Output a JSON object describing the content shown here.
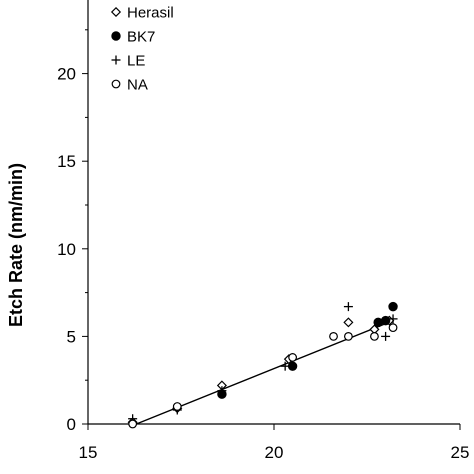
{
  "chart_data": {
    "type": "scatter",
    "title": "",
    "xlabel": "",
    "ylabel": "Etch Rate (nm/min)",
    "xlim": [
      15,
      25
    ],
    "ylim": [
      0,
      25
    ],
    "x_ticks": [
      "15",
      "20",
      "25"
    ],
    "y_ticks": [
      "0",
      "5",
      "10",
      "15",
      "20"
    ],
    "grid": false,
    "legend_placement": "top-left",
    "series": [
      {
        "name": "Herasil",
        "marker": "open-diamond",
        "points": [
          [
            16.2,
            0.1
          ],
          [
            17.4,
            0.9
          ],
          [
            18.6,
            2.2
          ],
          [
            20.4,
            3.7
          ],
          [
            22.0,
            5.8
          ],
          [
            22.7,
            5.4
          ],
          [
            23.1,
            5.9
          ]
        ]
      },
      {
        "name": "BK7",
        "marker": "filled-circle",
        "points": [
          [
            18.6,
            1.7
          ],
          [
            20.5,
            3.3
          ],
          [
            22.8,
            5.8
          ],
          [
            23.0,
            5.9
          ],
          [
            23.2,
            6.7
          ]
        ]
      },
      {
        "name": "LE",
        "marker": "plus",
        "points": [
          [
            16.2,
            0.3
          ],
          [
            17.4,
            0.8
          ],
          [
            18.6,
            1.9
          ],
          [
            20.3,
            3.3
          ],
          [
            22.0,
            6.7
          ],
          [
            23.0,
            5.0
          ],
          [
            23.2,
            6.0
          ]
        ]
      },
      {
        "name": "NA",
        "marker": "open-circle",
        "points": [
          [
            16.2,
            0.0
          ],
          [
            17.4,
            1.0
          ],
          [
            20.5,
            3.8
          ],
          [
            21.6,
            5.0
          ],
          [
            22.0,
            5.0
          ],
          [
            22.7,
            5.0
          ],
          [
            23.2,
            5.5
          ]
        ]
      }
    ],
    "fit_line": {
      "from": [
        16.3,
        0.0
      ],
      "to": [
        23.2,
        5.9
      ]
    }
  }
}
